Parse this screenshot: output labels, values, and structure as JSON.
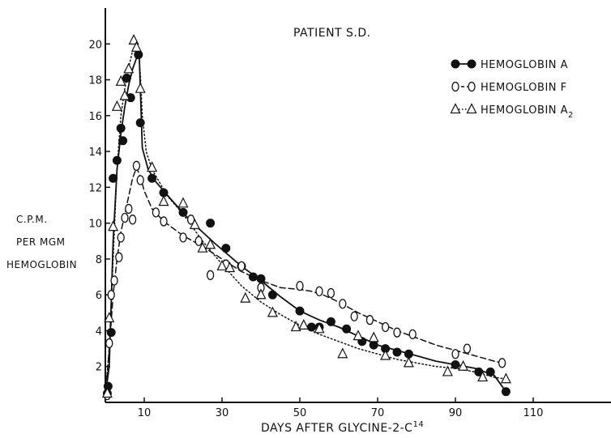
{
  "chart_data": {
    "type": "scatter",
    "title": "PATIENT S.D.",
    "xlabel": "DAYS AFTER GLYCINE-2-C",
    "xlabel_superscript": "14",
    "ylabel_lines": [
      "C.P.M.",
      "PER MGM",
      "HEMOGLOBIN"
    ],
    "xlim": [
      0,
      130
    ],
    "ylim": [
      0,
      22
    ],
    "xticks": [
      10,
      30,
      50,
      70,
      90,
      110
    ],
    "yticks": [
      2,
      4,
      6,
      8,
      10,
      12,
      14,
      16,
      18,
      20
    ],
    "grid": false,
    "legend_position": "top-right",
    "series": [
      {
        "name": "HEMOGLOBIN A",
        "subscript": "",
        "marker": "filled-circle",
        "line": "solid",
        "points": [
          [
            0.5,
            0.5
          ],
          [
            0.7,
            0.9
          ],
          [
            1.5,
            3.9
          ],
          [
            2,
            12.5
          ],
          [
            3,
            13.5
          ],
          [
            4,
            15.3
          ],
          [
            4.5,
            14.6
          ],
          [
            5.5,
            18.1
          ],
          [
            6.5,
            17.0
          ],
          [
            8.5,
            19.4
          ],
          [
            9,
            15.6
          ],
          [
            12,
            12.5
          ],
          [
            15,
            11.7
          ],
          [
            20,
            10.6
          ],
          [
            27,
            10.0
          ],
          [
            31,
            8.6
          ],
          [
            35,
            7.6
          ],
          [
            38,
            7.0
          ],
          [
            40,
            6.9
          ],
          [
            43,
            6.0
          ],
          [
            50,
            5.1
          ],
          [
            53,
            4.2
          ],
          [
            55,
            4.2
          ],
          [
            58,
            4.5
          ],
          [
            62,
            4.1
          ],
          [
            66,
            3.4
          ],
          [
            69,
            3.2
          ],
          [
            72,
            3.0
          ],
          [
            75,
            2.8
          ],
          [
            78,
            2.7
          ],
          [
            90,
            2.1
          ],
          [
            96,
            1.7
          ],
          [
            99,
            1.7
          ],
          [
            103,
            0.6
          ]
        ],
        "curve": [
          [
            0,
            0.4
          ],
          [
            1,
            2
          ],
          [
            2,
            9
          ],
          [
            3,
            13
          ],
          [
            4,
            15
          ],
          [
            5,
            16.5
          ],
          [
            6,
            17.7
          ],
          [
            7,
            18.6
          ],
          [
            8,
            19.2
          ],
          [
            8.7,
            19.4
          ],
          [
            9,
            17.5
          ],
          [
            9.5,
            14.2
          ],
          [
            11,
            13
          ],
          [
            13,
            12.3
          ],
          [
            17,
            11.3
          ],
          [
            22,
            10.1
          ],
          [
            28,
            8.9
          ],
          [
            35,
            7.6
          ],
          [
            40,
            6.8
          ],
          [
            45,
            5.9
          ],
          [
            50,
            5.1
          ],
          [
            55,
            4.6
          ],
          [
            60,
            4.2
          ],
          [
            65,
            3.7
          ],
          [
            70,
            3.2
          ],
          [
            75,
            2.9
          ],
          [
            80,
            2.6
          ],
          [
            85,
            2.3
          ],
          [
            90,
            2.1
          ],
          [
            95,
            1.9
          ],
          [
            100,
            1.5
          ],
          [
            103,
            0.6
          ]
        ]
      },
      {
        "name": "HEMOGLOBIN F",
        "subscript": "",
        "marker": "open-circle",
        "line": "dashed",
        "points": [
          [
            0.5,
            0.4
          ],
          [
            1,
            3.3
          ],
          [
            1.5,
            6.0
          ],
          [
            2.3,
            6.8
          ],
          [
            3.5,
            8.1
          ],
          [
            4,
            9.2
          ],
          [
            5,
            10.3
          ],
          [
            6,
            10.8
          ],
          [
            7,
            10.2
          ],
          [
            8,
            13.2
          ],
          [
            9,
            12.4
          ],
          [
            13,
            10.6
          ],
          [
            15,
            10.1
          ],
          [
            20,
            9.2
          ],
          [
            22,
            10.2
          ],
          [
            24,
            9.0
          ],
          [
            27,
            7.1
          ],
          [
            31,
            7.7
          ],
          [
            35,
            7.6
          ],
          [
            40,
            6.4
          ],
          [
            50,
            6.5
          ],
          [
            55,
            6.2
          ],
          [
            58,
            6.1
          ],
          [
            61,
            5.5
          ],
          [
            64,
            4.8
          ],
          [
            68,
            4.6
          ],
          [
            72,
            4.2
          ],
          [
            75,
            3.9
          ],
          [
            79,
            3.8
          ],
          [
            90,
            2.7
          ],
          [
            93,
            3.0
          ],
          [
            102,
            2.2
          ]
        ],
        "curve": [
          [
            0,
            0.3
          ],
          [
            1,
            3
          ],
          [
            2,
            6
          ],
          [
            3,
            8
          ],
          [
            4,
            9.5
          ],
          [
            5,
            10.5
          ],
          [
            6,
            11.5
          ],
          [
            7,
            12.5
          ],
          [
            8,
            13.1
          ],
          [
            9,
            12.6
          ],
          [
            10,
            11.8
          ],
          [
            12,
            10.8
          ],
          [
            15,
            10.1
          ],
          [
            20,
            9.3
          ],
          [
            25,
            8.7
          ],
          [
            30,
            8.0
          ],
          [
            35,
            7.3
          ],
          [
            40,
            6.8
          ],
          [
            45,
            6.4
          ],
          [
            50,
            6.3
          ],
          [
            53,
            6.2
          ],
          [
            56,
            6.0
          ],
          [
            60,
            5.6
          ],
          [
            65,
            5.0
          ],
          [
            70,
            4.5
          ],
          [
            75,
            4.0
          ],
          [
            80,
            3.6
          ],
          [
            85,
            3.2
          ],
          [
            90,
            2.9
          ],
          [
            95,
            2.6
          ],
          [
            100,
            2.3
          ],
          [
            102,
            2.2
          ]
        ]
      },
      {
        "name": "HEMOGLOBIN A",
        "subscript": "2",
        "marker": "open-triangle",
        "line": "dotted",
        "points": [
          [
            0.5,
            0.5
          ],
          [
            1,
            4.7
          ],
          [
            2,
            9.8
          ],
          [
            3,
            16.5
          ],
          [
            4,
            17.9
          ],
          [
            5,
            17.1
          ],
          [
            6,
            18.6
          ],
          [
            7.3,
            20.2
          ],
          [
            8,
            19.8
          ],
          [
            9,
            17.5
          ],
          [
            12,
            13.1
          ],
          [
            15,
            11.2
          ],
          [
            20,
            11.1
          ],
          [
            23,
            9.9
          ],
          [
            25,
            8.6
          ],
          [
            27,
            8.8
          ],
          [
            30,
            7.6
          ],
          [
            32,
            7.5
          ],
          [
            36,
            5.8
          ],
          [
            40,
            6.0
          ],
          [
            43,
            5.0
          ],
          [
            49,
            4.2
          ],
          [
            51,
            4.3
          ],
          [
            55,
            4.1
          ],
          [
            61,
            2.7
          ],
          [
            65,
            3.7
          ],
          [
            69,
            3.6
          ],
          [
            72,
            2.6
          ],
          [
            78,
            2.2
          ],
          [
            88,
            1.7
          ],
          [
            92,
            2.0
          ],
          [
            97,
            1.4
          ],
          [
            103,
            1.3
          ]
        ],
        "curve": [
          [
            0,
            0.4
          ],
          [
            1,
            3
          ],
          [
            2,
            8
          ],
          [
            3,
            13
          ],
          [
            4,
            16
          ],
          [
            5,
            17.5
          ],
          [
            6,
            18.7
          ],
          [
            7,
            19.6
          ],
          [
            7.8,
            20
          ],
          [
            8.5,
            19.6
          ],
          [
            9,
            18.3
          ],
          [
            9.5,
            16
          ],
          [
            10.5,
            14
          ],
          [
            12,
            13
          ],
          [
            16,
            11.5
          ],
          [
            20,
            10.5
          ],
          [
            25,
            9.0
          ],
          [
            30,
            7.7
          ],
          [
            35,
            6.5
          ],
          [
            40,
            5.6
          ],
          [
            45,
            4.9
          ],
          [
            50,
            4.3
          ],
          [
            55,
            3.8
          ],
          [
            60,
            3.4
          ],
          [
            65,
            3.0
          ],
          [
            70,
            2.7
          ],
          [
            75,
            2.4
          ],
          [
            80,
            2.2
          ],
          [
            85,
            2.0
          ],
          [
            90,
            1.9
          ],
          [
            95,
            1.7
          ],
          [
            100,
            1.4
          ],
          [
            103,
            1.3
          ]
        ]
      }
    ]
  }
}
